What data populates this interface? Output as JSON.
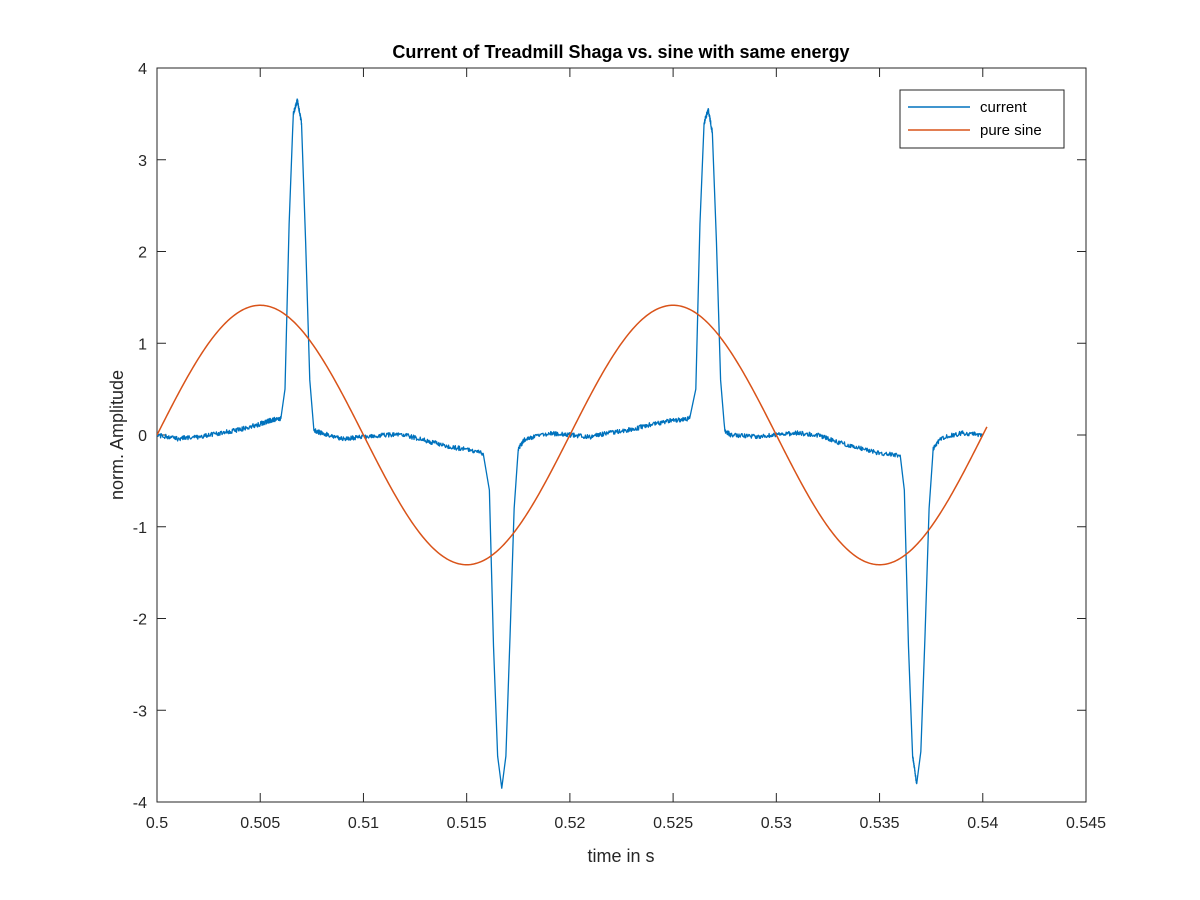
{
  "chart_data": {
    "type": "line",
    "title": "Current of Treadmill Shaga vs. sine with same energy",
    "xlabel": "time in s",
    "ylabel": "norm. Amplitude",
    "xlim": [
      0.5,
      0.545
    ],
    "ylim": [
      -4,
      4
    ],
    "xticks": [
      0.5,
      0.505,
      0.51,
      0.515,
      0.52,
      0.525,
      0.53,
      0.535,
      0.54,
      0.545
    ],
    "xtick_labels": [
      "0.5",
      "0.505",
      "0.51",
      "0.515",
      "0.52",
      "0.525",
      "0.53",
      "0.535",
      "0.54",
      "0.545"
    ],
    "yticks": [
      -4,
      -3,
      -2,
      -1,
      0,
      1,
      2,
      3,
      4
    ],
    "ytick_labels": [
      "-4",
      "-3",
      "-2",
      "-1",
      "0",
      "1",
      "2",
      "3",
      "4"
    ],
    "grid": false,
    "legend_position": "top-right",
    "series": [
      {
        "name": "current",
        "color": "#0072BD",
        "x": [
          0.5,
          0.501,
          0.502,
          0.503,
          0.504,
          0.505,
          0.5055,
          0.506,
          0.5062,
          0.5064,
          0.5066,
          0.5068,
          0.507,
          0.5072,
          0.5074,
          0.5076,
          0.508,
          0.509,
          0.51,
          0.511,
          0.512,
          0.513,
          0.514,
          0.515,
          0.5158,
          0.5161,
          0.5163,
          0.5165,
          0.5167,
          0.5169,
          0.5171,
          0.5173,
          0.5175,
          0.5178,
          0.519,
          0.52,
          0.521,
          0.522,
          0.523,
          0.524,
          0.525,
          0.5258,
          0.5261,
          0.5263,
          0.5265,
          0.5267,
          0.5269,
          0.5271,
          0.5273,
          0.5275,
          0.5278,
          0.529,
          0.53,
          0.531,
          0.532,
          0.533,
          0.534,
          0.535,
          0.536,
          0.5362,
          0.5364,
          0.5366,
          0.5368,
          0.537,
          0.5372,
          0.5374,
          0.5376,
          0.538,
          0.539,
          0.54
        ],
        "y": [
          0,
          -0.04,
          -0.02,
          0.02,
          0.06,
          0.12,
          0.16,
          0.18,
          0.5,
          2.3,
          3.5,
          3.65,
          3.4,
          2.1,
          0.6,
          0.05,
          0.02,
          -0.04,
          -0.02,
          0.0,
          0.0,
          -0.06,
          -0.12,
          -0.16,
          -0.2,
          -0.6,
          -2.3,
          -3.5,
          -3.85,
          -3.5,
          -2.2,
          -0.8,
          -0.15,
          -0.05,
          0.02,
          0.0,
          -0.02,
          0.03,
          0.06,
          0.12,
          0.16,
          0.18,
          0.5,
          2.3,
          3.4,
          3.55,
          3.3,
          2.1,
          0.6,
          0.05,
          0.0,
          -0.02,
          0.0,
          0.02,
          0.0,
          -0.08,
          -0.14,
          -0.2,
          -0.22,
          -0.6,
          -2.3,
          -3.5,
          -3.8,
          -3.45,
          -2.2,
          -0.8,
          -0.15,
          -0.03,
          0.02,
          0.0
        ]
      },
      {
        "name": "pure sine",
        "color": "#D95319",
        "amplitude": 1.414,
        "period": 0.02,
        "x_start": 0.5,
        "x_end": 0.5402
      }
    ]
  }
}
